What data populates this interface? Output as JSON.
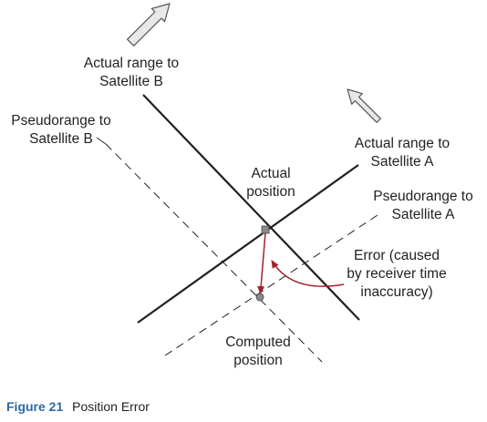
{
  "labels": {
    "actual_range_b": [
      "Actual range to",
      "Satellite B"
    ],
    "pseudorange_b": [
      "Pseudorange to",
      "Satellite B"
    ],
    "actual_range_a": [
      "Actual range to",
      "Satellite A"
    ],
    "actual_position": [
      "Actual",
      "position"
    ],
    "pseudorange_a": [
      "Pseudorange to",
      "Satellite A"
    ],
    "error": [
      "Error (caused",
      "by receiver time",
      "inaccuracy)"
    ],
    "computed_position": [
      "Computed",
      "position"
    ]
  },
  "caption": {
    "figure": "Figure 21",
    "title": "Position Error"
  },
  "colors": {
    "line": "#231f20",
    "error_arrow": "#a3202b",
    "caption_blue": "#2d6aa6",
    "position_marker": "#8a8a8a",
    "direction_arrow_fill": "#e8e8e8"
  }
}
